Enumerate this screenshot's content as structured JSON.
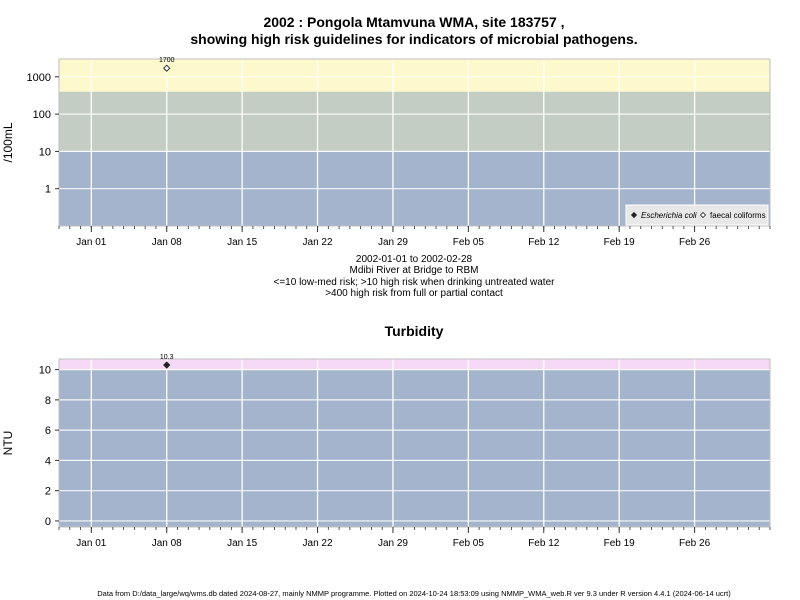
{
  "chart_data": [
    {
      "type": "scatter",
      "title_line1": "2002 : Pongola Mtamvuna WMA, site 183757 ,",
      "title_line2": "showing high risk guidelines for indicators of microbial pathogens.",
      "ylabel": "/100mL",
      "xlabel": "",
      "yscale": "log",
      "ylim": [
        0.1,
        3000
      ],
      "yticks": [
        "1",
        "10",
        "100",
        "1000"
      ],
      "ytick_values": [
        1,
        10,
        100,
        1000
      ],
      "xlim": [
        "2001-12-29",
        "2003-03-01"
      ],
      "xtick_labels": [
        "Jan 01",
        "Jan 08",
        "Jan 15",
        "Jan 22",
        "Jan 29",
        "Feb 05",
        "Feb 12",
        "Feb 19",
        "Feb 26"
      ],
      "xtick_dates": [
        "2002-01-01",
        "2002-01-08",
        "2002-01-15",
        "2002-01-22",
        "2002-01-29",
        "2002-02-05",
        "2002-02-12",
        "2002-02-19",
        "2002-02-26"
      ],
      "bands": [
        {
          "from": 0.1,
          "to": 10,
          "color": "#a3b4cc"
        },
        {
          "from": 10,
          "to": 400,
          "color": "#c4cdc3"
        },
        {
          "from": 400,
          "to": 3000,
          "color": "#fdf9cc"
        }
      ],
      "series": [
        {
          "name": "Escherichia coli",
          "marker": "filled-diamond",
          "points": []
        },
        {
          "name": "faecal coliforms",
          "marker": "open-diamond",
          "points": [
            {
              "x": "2002-01-08",
              "y": 1700,
              "label": "1700"
            }
          ]
        }
      ],
      "legend_position": "bottom-right",
      "grid": true,
      "subtitle_lines": [
        "2002-01-01 to 2002-02-28",
        "Mdibi River at Bridge to RBM",
        "<=10 low-med risk; >10 high risk when drinking untreated water",
        ">400 high risk from full or partial contact"
      ]
    },
    {
      "type": "scatter",
      "title": "Turbidity",
      "ylabel": "NTU",
      "xlabel": "",
      "yscale": "linear",
      "ylim": [
        -0.4,
        10.7
      ],
      "yticks": [
        "0",
        "2",
        "4",
        "6",
        "8",
        "10"
      ],
      "ytick_values": [
        0,
        2,
        4,
        6,
        8,
        10
      ],
      "xlim": [
        "2001-12-29",
        "2003-03-01"
      ],
      "xtick_labels": [
        "Jan 01",
        "Jan 08",
        "Jan 15",
        "Jan 22",
        "Jan 29",
        "Feb 05",
        "Feb 12",
        "Feb 19",
        "Feb 26"
      ],
      "xtick_dates": [
        "2002-01-01",
        "2002-01-08",
        "2002-01-15",
        "2002-01-22",
        "2002-01-29",
        "2002-02-05",
        "2002-02-12",
        "2002-02-19",
        "2002-02-26"
      ],
      "bands": [
        {
          "from": -0.4,
          "to": 10,
          "color": "#a3b4cc"
        },
        {
          "from": 10,
          "to": 10.7,
          "color": "#f5d9f7"
        }
      ],
      "series": [
        {
          "marker": "filled-diamond",
          "points": [
            {
              "x": "2002-01-08",
              "y": 10.3,
              "label": "10.3"
            }
          ]
        }
      ],
      "grid": true
    }
  ],
  "footer": "Data from D:/data_large/wq/wms.db dated 2024-08-27, mainly NMMP programme. Plotted on 2024-10-24 18:53:09 using NMMP_WMA_web.R ver 9.3 under R version 4.4.1 (2024-06-14 ucrt)"
}
